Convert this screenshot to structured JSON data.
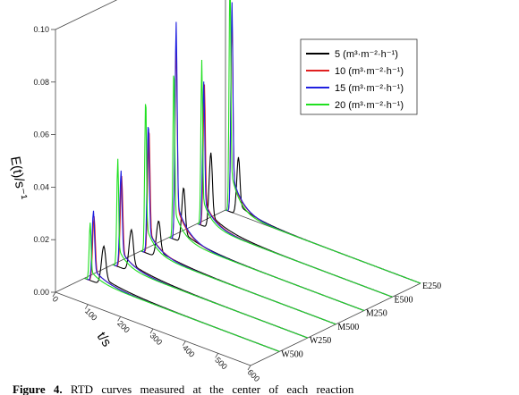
{
  "chart_data": {
    "type": "line",
    "subtype": "3d-waterfall",
    "xlabel": "t/s",
    "ylabel": "E(t)/s⁻¹",
    "x_ticks": [
      "0",
      "100",
      "200",
      "300",
      "400",
      "500",
      "600"
    ],
    "xlim": [
      0,
      600
    ],
    "y_ticks": [
      "0.00",
      "0.02",
      "0.04",
      "0.06",
      "0.08",
      "0.10"
    ],
    "ylim": [
      0,
      0.1
    ],
    "zones": [
      "W500",
      "W250",
      "M500",
      "M250",
      "E500",
      "E250"
    ],
    "legend": {
      "position": "top-right",
      "entries": [
        "5  (m³·m⁻²·h⁻¹)",
        "10 (m³·m⁻²·h⁻¹)",
        "15 (m³·m⁻²·h⁻¹)",
        "20 (m³·m⁻²·h⁻¹)"
      ]
    },
    "series": [
      {
        "color": "#000000",
        "peak_time": [
          60,
          58,
          55,
          45,
          42,
          40
        ],
        "peak_value": [
          0.015,
          0.016,
          0.014,
          0.021,
          0.029,
          0.022
        ]
      },
      {
        "color": "#e02020",
        "peak_time": [
          30,
          28,
          25,
          22,
          22,
          20
        ],
        "peak_value": [
          0.025,
          0.035,
          0.048,
          0.075,
          0.054,
          0.075
        ]
      },
      {
        "color": "#2020e0",
        "peak_time": [
          28,
          26,
          23,
          22,
          20,
          20
        ],
        "peak_value": [
          0.027,
          0.037,
          0.05,
          0.083,
          0.055,
          0.08
        ]
      },
      {
        "color": "#20e020",
        "peak_time": [
          18,
          16,
          15,
          15,
          14,
          14
        ],
        "peak_value": [
          0.022,
          0.041,
          0.06,
          0.066,
          0.063,
          0.095
        ]
      }
    ]
  },
  "caption": {
    "label": "Figure 4.",
    "text": "RTD curves measured at the center of each reaction"
  }
}
